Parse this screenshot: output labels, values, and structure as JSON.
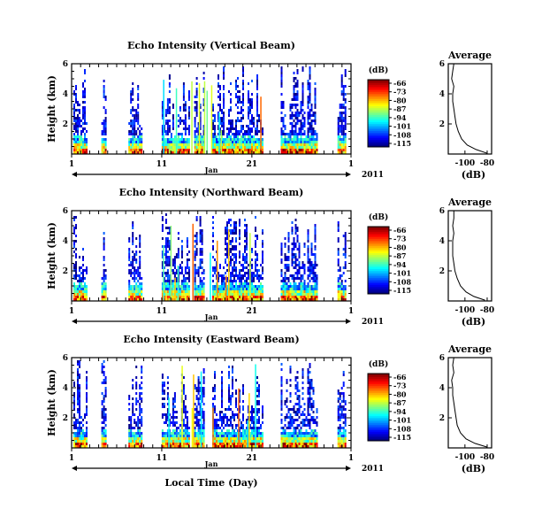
{
  "figure": {
    "xlabel": "Local Time (Day)",
    "month_label": "Jan",
    "year_label": "2011",
    "ylabel": "Height (km)",
    "colorbar_unit": "(dB)",
    "profile_title": "Average",
    "profile_xlabel": "(dB)"
  },
  "chart_data": [
    {
      "type": "heatmap",
      "title": "Echo Intensity (Vertical Beam)",
      "xlabel": "Local Time (Day)",
      "ylabel": "Height (km)",
      "x_ticks": [
        "1",
        "11",
        "21",
        "1"
      ],
      "xlim": [
        1,
        32
      ],
      "y_ticks": [
        "2",
        "4",
        "6"
      ],
      "ylim": [
        0,
        6
      ],
      "colorbar": {
        "label": "(dB)",
        "ticks": [
          "-66",
          "-73",
          "-80",
          "-87",
          "-94",
          "-101",
          "-108",
          "-115"
        ],
        "range": [
          -115,
          -66
        ]
      },
      "active_periods_days": [
        [
          1.2,
          2.6
        ],
        [
          4.3,
          4.7
        ],
        [
          7.3,
          8.8
        ],
        [
          11.0,
          14.0
        ],
        [
          14.6,
          15.6
        ],
        [
          16.6,
          22.2
        ],
        [
          24.2,
          28.2
        ],
        [
          30.5,
          31.3
        ]
      ],
      "profile": {
        "title": "Average",
        "xlabel": "(dB)",
        "x_ticks": [
          "-100",
          "-80"
        ],
        "y_ticks": [
          "2",
          "4",
          "6"
        ],
        "height_km": [
          0.05,
          0.3,
          0.6,
          1.0,
          1.5,
          2.0,
          2.5,
          3.0,
          3.5,
          4.0,
          4.5,
          5.0,
          5.5,
          6.0
        ],
        "db": [
          -80,
          -90,
          -98,
          -103,
          -106,
          -108,
          -109,
          -110,
          -111,
          -111,
          -110,
          -112,
          -111,
          -110
        ]
      }
    },
    {
      "type": "heatmap",
      "title": "Echo Intensity (Northward Beam)",
      "xlabel": "Local Time (Day)",
      "ylabel": "Height (km)",
      "x_ticks": [
        "1",
        "11",
        "21",
        "1"
      ],
      "xlim": [
        1,
        32
      ],
      "y_ticks": [
        "2",
        "4",
        "6"
      ],
      "ylim": [
        0,
        6
      ],
      "colorbar": {
        "label": "(dB)",
        "ticks": [
          "-66",
          "-73",
          "-80",
          "-87",
          "-94",
          "-101",
          "-108",
          "-115"
        ],
        "range": [
          -115,
          -66
        ]
      },
      "active_periods_days": [
        [
          1.2,
          2.6
        ],
        [
          4.3,
          4.7
        ],
        [
          7.3,
          8.8
        ],
        [
          11.0,
          14.0
        ],
        [
          14.6,
          15.6
        ],
        [
          16.6,
          22.2
        ],
        [
          24.2,
          28.2
        ],
        [
          30.5,
          31.3
        ]
      ],
      "profile": {
        "title": "Average",
        "xlabel": "(dB)",
        "x_ticks": [
          "-100",
          "-80"
        ],
        "y_ticks": [
          "2",
          "4",
          "6"
        ],
        "height_km": [
          0.05,
          0.3,
          0.6,
          1.0,
          1.5,
          2.0,
          2.5,
          3.0,
          3.5,
          4.0,
          4.5,
          5.0,
          5.5,
          6.0
        ],
        "db": [
          -82,
          -92,
          -99,
          -104,
          -107,
          -109,
          -110,
          -111,
          -111,
          -111,
          -110,
          -111,
          -110,
          -110
        ]
      }
    },
    {
      "type": "heatmap",
      "title": "Echo Intensity (Eastward Beam)",
      "xlabel": "Local Time (Day)",
      "ylabel": "Height (km)",
      "x_ticks": [
        "1",
        "11",
        "21",
        "1"
      ],
      "xlim": [
        1,
        32
      ],
      "y_ticks": [
        "2",
        "4",
        "6"
      ],
      "ylim": [
        0,
        6
      ],
      "colorbar": {
        "label": "(dB)",
        "ticks": [
          "-66",
          "-73",
          "-80",
          "-87",
          "-94",
          "-101",
          "-108",
          "-115"
        ],
        "range": [
          -115,
          -66
        ]
      },
      "active_periods_days": [
        [
          1.2,
          2.6
        ],
        [
          4.3,
          4.7
        ],
        [
          7.3,
          8.8
        ],
        [
          11.0,
          14.0
        ],
        [
          14.6,
          15.6
        ],
        [
          16.6,
          22.2
        ],
        [
          24.2,
          28.2
        ],
        [
          30.5,
          31.3
        ]
      ],
      "profile": {
        "title": "Average",
        "xlabel": "(dB)",
        "x_ticks": [
          "-100",
          "-80"
        ],
        "y_ticks": [
          "2",
          "4",
          "6"
        ],
        "height_km": [
          0.05,
          0.3,
          0.6,
          1.0,
          1.5,
          2.0,
          2.5,
          3.0,
          3.5,
          4.0,
          4.5,
          5.0,
          5.5,
          6.0
        ],
        "db": [
          -80,
          -91,
          -99,
          -104,
          -107,
          -108,
          -109,
          -110,
          -111,
          -111,
          -112,
          -110,
          -111,
          -110
        ]
      }
    }
  ]
}
